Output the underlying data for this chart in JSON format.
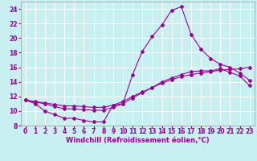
{
  "xlabel": "Windchill (Refroidissement éolien,°C)",
  "bg_color": "#c8f0f0",
  "line_color": "#990099",
  "grid_color": "#ffffff",
  "xlim": [
    -0.5,
    23.5
  ],
  "ylim": [
    8,
    25
  ],
  "yticks": [
    8,
    10,
    12,
    14,
    16,
    18,
    20,
    22,
    24
  ],
  "xticks": [
    0,
    1,
    2,
    3,
    4,
    5,
    6,
    7,
    8,
    9,
    10,
    11,
    12,
    13,
    14,
    15,
    16,
    17,
    18,
    19,
    20,
    21,
    22,
    23
  ],
  "line1_x": [
    0,
    1,
    2,
    3,
    4,
    5,
    6,
    7,
    8,
    9,
    10,
    11,
    12,
    13,
    14,
    15,
    16,
    17,
    18,
    19,
    20,
    21,
    22,
    23
  ],
  "line1_y": [
    11.5,
    11.0,
    10.0,
    9.5,
    9.0,
    9.0,
    8.7,
    8.5,
    8.5,
    10.8,
    11.0,
    15.0,
    18.2,
    20.2,
    21.8,
    23.8,
    24.3,
    20.5,
    18.5,
    17.2,
    16.4,
    16.0,
    15.2,
    14.2
  ],
  "line2_x": [
    0,
    1,
    2,
    3,
    4,
    5,
    6,
    7,
    8,
    9,
    10,
    11,
    12,
    13,
    14,
    15,
    16,
    17,
    18,
    19,
    20,
    21,
    22,
    23
  ],
  "line2_y": [
    11.5,
    11.2,
    11.0,
    10.6,
    10.3,
    10.3,
    10.2,
    10.1,
    10.1,
    10.5,
    11.0,
    11.8,
    12.5,
    13.2,
    14.0,
    14.5,
    15.0,
    15.4,
    15.5,
    15.5,
    15.8,
    15.3,
    14.8,
    13.5
  ],
  "line3_x": [
    0,
    1,
    2,
    3,
    4,
    5,
    6,
    7,
    8,
    9,
    10,
    11,
    12,
    13,
    14,
    15,
    16,
    17,
    18,
    19,
    20,
    21,
    22,
    23
  ],
  "line3_y": [
    11.5,
    11.3,
    11.1,
    10.9,
    10.7,
    10.7,
    10.6,
    10.5,
    10.5,
    10.8,
    11.3,
    12.0,
    12.6,
    13.2,
    13.8,
    14.3,
    14.7,
    15.0,
    15.2,
    15.4,
    15.6,
    15.7,
    15.8,
    16.0
  ],
  "tick_fontsize": 5.5,
  "label_fontsize": 6.0
}
